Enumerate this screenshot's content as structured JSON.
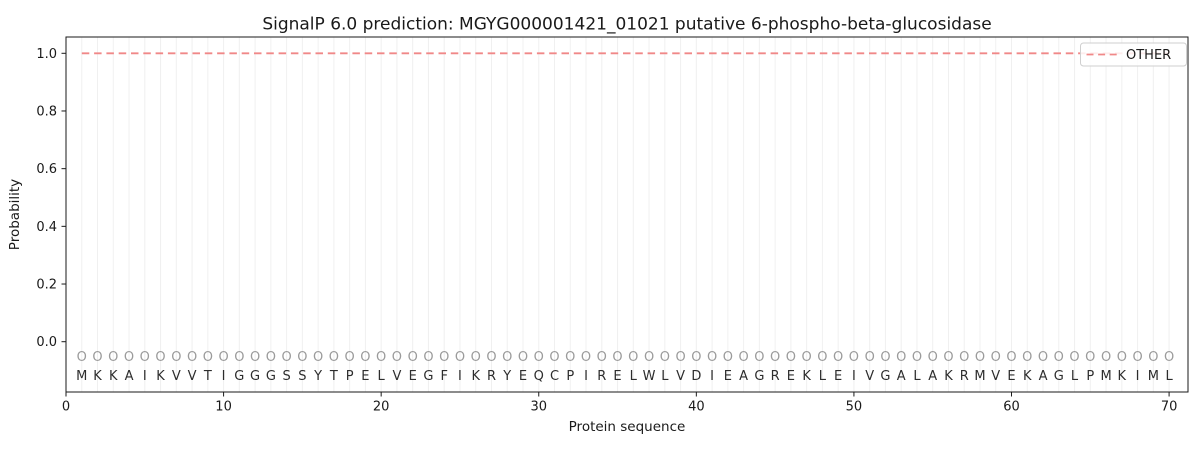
{
  "figure": {
    "kind": "matplotlib-style static prediction plot",
    "title": "SignalP 6.0 prediction: MGYG000001421_01021 putative 6-phospho-beta-glucosidase"
  },
  "chart_data": {
    "type": "line",
    "title": "SignalP 6.0 prediction: MGYG000001421_01021 putative 6-phospho-beta-glucosidase",
    "xlabel": "Protein sequence",
    "ylabel": "Probability",
    "xlim": [
      0,
      71.2
    ],
    "ylim": [
      -0.1744,
      1.0565
    ],
    "x_ticks": [
      0,
      10,
      20,
      30,
      40,
      50,
      60,
      70
    ],
    "y_ticks": [
      "0.0",
      "0.2",
      "0.4",
      "0.6",
      "0.8",
      "1.0"
    ],
    "grid": "light vertical gridline at every residue position 1-70, no horizontal gridlines",
    "legend": {
      "position": "upper-right",
      "entries": [
        {
          "label": "OTHER",
          "style": "dashed",
          "color": "#f08888"
        }
      ]
    },
    "sequence": "MKKAIKVVTIGGGSSYTPELVEGFIKRYEQCPIRELWLVDIEAGREKLEIVGALAKRMVEKAGLPMKIML",
    "per_position_marker": "O",
    "series": [
      {
        "name": "OTHER",
        "style": "dashed",
        "color": "#f08888",
        "x": [
          1,
          2,
          3,
          4,
          5,
          6,
          7,
          8,
          9,
          10,
          11,
          12,
          13,
          14,
          15,
          16,
          17,
          18,
          19,
          20,
          21,
          22,
          23,
          24,
          25,
          26,
          27,
          28,
          29,
          30,
          31,
          32,
          33,
          34,
          35,
          36,
          37,
          38,
          39,
          40,
          41,
          42,
          43,
          44,
          45,
          46,
          47,
          48,
          49,
          50,
          51,
          52,
          53,
          54,
          55,
          56,
          57,
          58,
          59,
          60,
          61,
          62,
          63,
          64,
          65,
          66,
          67,
          68,
          69,
          70
        ],
        "values": [
          1.0,
          1.0,
          1.0,
          1.0,
          1.0,
          1.0,
          1.0,
          1.0,
          1.0,
          1.0,
          1.0,
          1.0,
          1.0,
          1.0,
          1.0,
          1.0,
          1.0,
          1.0,
          1.0,
          1.0,
          1.0,
          1.0,
          1.0,
          1.0,
          1.0,
          1.0,
          1.0,
          1.0,
          1.0,
          1.0,
          1.0,
          1.0,
          1.0,
          1.0,
          1.0,
          1.0,
          1.0,
          1.0,
          1.0,
          1.0,
          1.0,
          1.0,
          1.0,
          1.0,
          1.0,
          1.0,
          1.0,
          1.0,
          1.0,
          1.0,
          1.0,
          1.0,
          1.0,
          1.0,
          1.0,
          1.0,
          1.0,
          1.0,
          1.0,
          1.0,
          1.0,
          1.0,
          1.0,
          1.0,
          1.0,
          1.0,
          1.0,
          1.0,
          1.0,
          1.0
        ]
      }
    ],
    "colors": {
      "line": "#f08888",
      "grid": "#f0f0f0",
      "axis": "#1a1a1a",
      "tick_text": "#1a1a1a",
      "sequence_text": "#2d2d2d",
      "marker_text": "#9b9b9b",
      "legend_border": "#cfcfcf",
      "background": "#ffffff"
    }
  }
}
